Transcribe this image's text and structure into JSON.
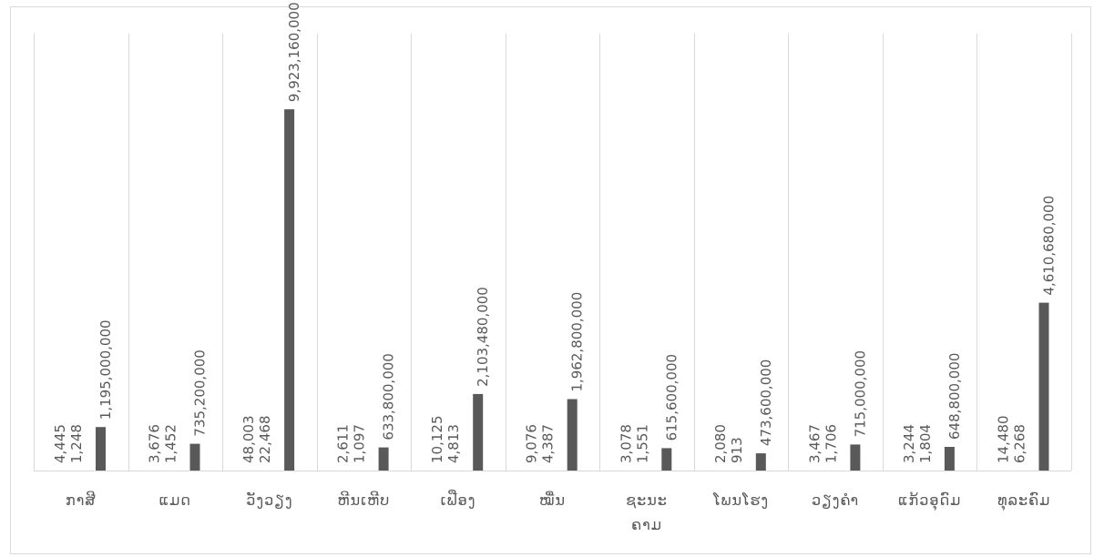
{
  "chart_data": {
    "type": "bar",
    "categories": [
      [
        "ກາສີ"
      ],
      [
        "ແມດ"
      ],
      [
        "ວັງວຽງ"
      ],
      [
        "ຫີນເຫີບ"
      ],
      [
        "ເຟືອງ"
      ],
      [
        "ໝື່ນ"
      ],
      [
        "ຊະນະ",
        "ຄາມ"
      ],
      [
        "ໂພນໂຮງ"
      ],
      [
        "ວຽງຄຳ"
      ],
      [
        "ແກ້ວອຸດົມ"
      ],
      [
        "ທຸລະຄົມ"
      ]
    ],
    "series": [
      {
        "values": [
          4445,
          3676,
          48003,
          2611,
          10125,
          9076,
          3078,
          2080,
          3467,
          3244,
          14480
        ],
        "labels": [
          "4,445",
          "3,676",
          "48,003",
          "2,611",
          "10,125",
          "9,076",
          "3,078",
          "2,080",
          "3,467",
          "3,244",
          "14,480"
        ]
      },
      {
        "values": [
          1248,
          1452,
          22468,
          1097,
          4813,
          4387,
          1551,
          913,
          1706,
          1804,
          6268
        ],
        "labels": [
          "1,248",
          "1,452",
          "22,468",
          "1,097",
          "4,813",
          "4,387",
          "1,551",
          "913",
          "1,706",
          "1,804",
          "6,268"
        ]
      },
      {
        "values": [
          1195000000,
          735200000,
          9923160000,
          633800000,
          2103480000,
          1962800000,
          615600000,
          473600000,
          715000000,
          648800000,
          4610680000
        ],
        "labels": [
          "1,195,000,000",
          "735,200,000",
          "9,923,160,000",
          "633,800,000",
          "2,103,480,000",
          "1,962,800,000",
          "615,600,000",
          "473,600,000",
          "715,000,000",
          "648,800,000",
          "4,610,680,000"
        ]
      }
    ],
    "ylim": [
      0,
      12000000000
    ],
    "grid": "vertical",
    "legend": "none",
    "colors": {
      "bar": "#595959",
      "grid": "#d9d9d9",
      "text": "#595959"
    }
  }
}
